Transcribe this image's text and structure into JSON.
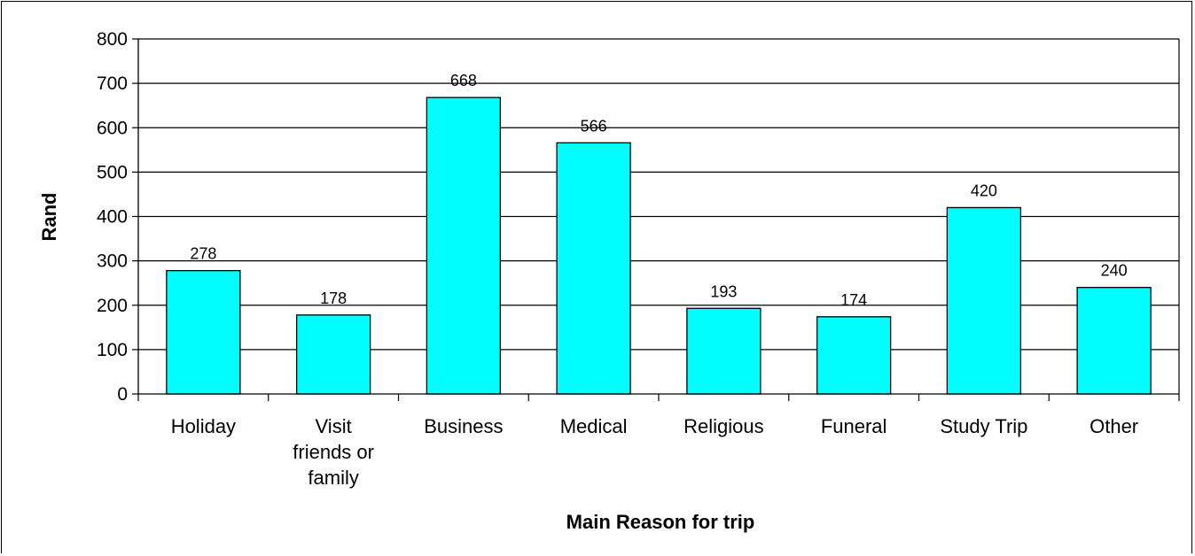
{
  "chart_data": {
    "type": "bar",
    "title": "",
    "xlabel": "Main Reason for trip",
    "ylabel": "Rand",
    "categories": [
      [
        "Holiday"
      ],
      [
        "Visit",
        "friends or",
        "family"
      ],
      [
        "Business"
      ],
      [
        "Medical"
      ],
      [
        "Religious"
      ],
      [
        "Funeral"
      ],
      [
        "Study Trip"
      ],
      [
        "Other"
      ]
    ],
    "values": [
      278,
      178,
      668,
      566,
      193,
      174,
      420,
      240
    ],
    "data_labels": [
      "278",
      "178",
      "668",
      "566",
      "193",
      "174",
      "420",
      "240"
    ],
    "ylim": [
      0,
      800
    ],
    "yticks": [
      0,
      100,
      200,
      300,
      400,
      500,
      600,
      700,
      800
    ],
    "grid": true,
    "legend": "none",
    "bar_color": "#00ffff",
    "bar_edge_color": "#000000"
  }
}
